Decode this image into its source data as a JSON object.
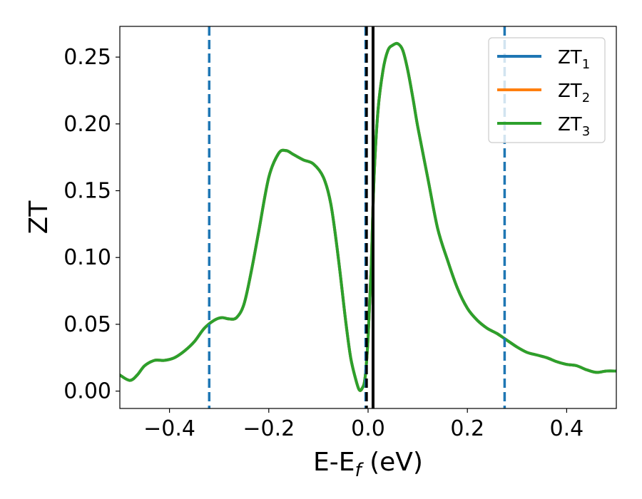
{
  "chart_data": {
    "type": "line",
    "xlabel": "E-E",
    "xlabel_sub": "f",
    "xlabel_unit": " (eV)",
    "ylabel": "ZT",
    "xlim": [
      -0.5,
      0.5
    ],
    "ylim": [
      -0.013,
      0.273
    ],
    "x_ticks": [
      -0.4,
      -0.2,
      0.0,
      0.2,
      0.4
    ],
    "x_tick_labels": [
      "−0.4",
      "−0.2",
      "0.0",
      "0.2",
      "0.4"
    ],
    "y_ticks": [
      0.0,
      0.05,
      0.1,
      0.15,
      0.2,
      0.25
    ],
    "y_tick_labels": [
      "0.00",
      "0.05",
      "0.10",
      "0.15",
      "0.20",
      "0.25"
    ],
    "grid": false,
    "legend_position": "top-right",
    "series": [
      {
        "name": "ZT",
        "sub": "1",
        "color": "#1f77b4",
        "x": [
          -0.5,
          -0.48,
          -0.465,
          -0.45,
          -0.43,
          -0.41,
          -0.39,
          -0.37,
          -0.35,
          -0.33,
          -0.31,
          -0.295,
          -0.28,
          -0.265,
          -0.25,
          -0.235,
          -0.22,
          -0.2,
          -0.18,
          -0.165,
          -0.15,
          -0.13,
          -0.11,
          -0.09,
          -0.075,
          -0.06,
          -0.045,
          -0.035,
          -0.025,
          -0.018,
          -0.012,
          -0.006,
          0.0,
          0.006,
          0.012,
          0.02,
          0.03,
          0.04,
          0.05,
          0.06,
          0.07,
          0.08,
          0.09,
          0.1,
          0.12,
          0.14,
          0.16,
          0.18,
          0.2,
          0.22,
          0.24,
          0.26,
          0.28,
          0.3,
          0.32,
          0.34,
          0.36,
          0.38,
          0.4,
          0.42,
          0.44,
          0.46,
          0.48,
          0.5
        ],
        "y": [
          0.012,
          0.008,
          0.012,
          0.019,
          0.023,
          0.023,
          0.025,
          0.03,
          0.037,
          0.047,
          0.053,
          0.055,
          0.054,
          0.055,
          0.065,
          0.09,
          0.12,
          0.16,
          0.178,
          0.18,
          0.177,
          0.173,
          0.17,
          0.16,
          0.14,
          0.1,
          0.052,
          0.025,
          0.009,
          0.001,
          0.002,
          0.01,
          0.04,
          0.09,
          0.16,
          0.21,
          0.24,
          0.255,
          0.259,
          0.26,
          0.255,
          0.24,
          0.22,
          0.198,
          0.16,
          0.122,
          0.098,
          0.077,
          0.062,
          0.053,
          0.047,
          0.043,
          0.038,
          0.033,
          0.029,
          0.027,
          0.025,
          0.022,
          0.02,
          0.019,
          0.016,
          0.014,
          0.015,
          0.015
        ]
      },
      {
        "name": "ZT",
        "sub": "2",
        "color": "#ff7f0e",
        "x": [
          -0.5,
          -0.48,
          -0.465,
          -0.45,
          -0.43,
          -0.41,
          -0.39,
          -0.37,
          -0.35,
          -0.33,
          -0.31,
          -0.295,
          -0.28,
          -0.265,
          -0.25,
          -0.235,
          -0.22,
          -0.2,
          -0.18,
          -0.165,
          -0.15,
          -0.13,
          -0.11,
          -0.09,
          -0.075,
          -0.06,
          -0.045,
          -0.035,
          -0.025,
          -0.018,
          -0.012,
          -0.006,
          0.0,
          0.006,
          0.012,
          0.02,
          0.03,
          0.04,
          0.05,
          0.06,
          0.07,
          0.08,
          0.09,
          0.1,
          0.12,
          0.14,
          0.16,
          0.18,
          0.2,
          0.22,
          0.24,
          0.26,
          0.28,
          0.3,
          0.32,
          0.34,
          0.36,
          0.38,
          0.4,
          0.42,
          0.44,
          0.46,
          0.48,
          0.5
        ],
        "y": [
          0.012,
          0.008,
          0.012,
          0.019,
          0.023,
          0.023,
          0.025,
          0.03,
          0.037,
          0.047,
          0.053,
          0.055,
          0.054,
          0.055,
          0.065,
          0.09,
          0.12,
          0.16,
          0.178,
          0.18,
          0.177,
          0.173,
          0.17,
          0.16,
          0.14,
          0.1,
          0.052,
          0.025,
          0.009,
          0.001,
          0.002,
          0.01,
          0.04,
          0.09,
          0.16,
          0.21,
          0.24,
          0.255,
          0.259,
          0.26,
          0.255,
          0.24,
          0.22,
          0.198,
          0.16,
          0.122,
          0.098,
          0.077,
          0.062,
          0.053,
          0.047,
          0.043,
          0.038,
          0.033,
          0.029,
          0.027,
          0.025,
          0.022,
          0.02,
          0.019,
          0.016,
          0.014,
          0.015,
          0.015
        ]
      },
      {
        "name": "ZT",
        "sub": "3",
        "color": "#2ca02c",
        "x": [
          -0.5,
          -0.48,
          -0.465,
          -0.45,
          -0.43,
          -0.41,
          -0.39,
          -0.37,
          -0.35,
          -0.33,
          -0.31,
          -0.295,
          -0.28,
          -0.265,
          -0.25,
          -0.235,
          -0.22,
          -0.2,
          -0.18,
          -0.165,
          -0.15,
          -0.13,
          -0.11,
          -0.09,
          -0.075,
          -0.06,
          -0.045,
          -0.035,
          -0.025,
          -0.018,
          -0.012,
          -0.006,
          0.0,
          0.006,
          0.012,
          0.02,
          0.03,
          0.04,
          0.05,
          0.06,
          0.07,
          0.08,
          0.09,
          0.1,
          0.12,
          0.14,
          0.16,
          0.18,
          0.2,
          0.22,
          0.24,
          0.26,
          0.28,
          0.3,
          0.32,
          0.34,
          0.36,
          0.38,
          0.4,
          0.42,
          0.44,
          0.46,
          0.48,
          0.5
        ],
        "y": [
          0.012,
          0.008,
          0.012,
          0.019,
          0.023,
          0.023,
          0.025,
          0.03,
          0.037,
          0.047,
          0.053,
          0.055,
          0.054,
          0.055,
          0.065,
          0.09,
          0.12,
          0.16,
          0.178,
          0.18,
          0.177,
          0.173,
          0.17,
          0.16,
          0.14,
          0.1,
          0.052,
          0.025,
          0.009,
          0.001,
          0.002,
          0.01,
          0.04,
          0.09,
          0.16,
          0.21,
          0.24,
          0.255,
          0.259,
          0.26,
          0.255,
          0.24,
          0.22,
          0.198,
          0.16,
          0.122,
          0.098,
          0.077,
          0.062,
          0.053,
          0.047,
          0.043,
          0.038,
          0.033,
          0.029,
          0.027,
          0.025,
          0.022,
          0.02,
          0.019,
          0.016,
          0.014,
          0.015,
          0.015
        ]
      }
    ],
    "vlines": [
      {
        "x": -0.32,
        "style": "dashed",
        "color": "#1f77b4"
      },
      {
        "x": 0.275,
        "style": "dashed",
        "color": "#1f77b4"
      },
      {
        "x": -0.005,
        "style": "dashed",
        "color": "#1f77b4"
      },
      {
        "x": 0.01,
        "style": "solid",
        "color": "#000000"
      },
      {
        "x": -0.003,
        "style": "dashed",
        "color": "#000000"
      }
    ]
  }
}
